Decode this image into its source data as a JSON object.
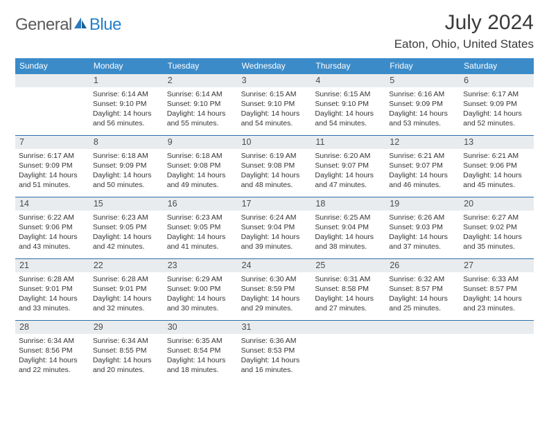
{
  "brand": {
    "part1": "General",
    "part2": "Blue"
  },
  "title": "July 2024",
  "location": "Eaton, Ohio, United States",
  "colors": {
    "header_bg": "#3b8bc9",
    "daynum_bg": "#e9ecee",
    "week_border": "#2d6ea8",
    "brand_blue": "#247fcb"
  },
  "week_labels": [
    "Sunday",
    "Monday",
    "Tuesday",
    "Wednesday",
    "Thursday",
    "Friday",
    "Saturday"
  ],
  "weeks": [
    [
      {
        "num": "",
        "sunrise": "",
        "sunset": "",
        "daylight": ""
      },
      {
        "num": "1",
        "sunrise": "Sunrise: 6:14 AM",
        "sunset": "Sunset: 9:10 PM",
        "daylight": "Daylight: 14 hours\nand 56 minutes."
      },
      {
        "num": "2",
        "sunrise": "Sunrise: 6:14 AM",
        "sunset": "Sunset: 9:10 PM",
        "daylight": "Daylight: 14 hours\nand 55 minutes."
      },
      {
        "num": "3",
        "sunrise": "Sunrise: 6:15 AM",
        "sunset": "Sunset: 9:10 PM",
        "daylight": "Daylight: 14 hours\nand 54 minutes."
      },
      {
        "num": "4",
        "sunrise": "Sunrise: 6:15 AM",
        "sunset": "Sunset: 9:10 PM",
        "daylight": "Daylight: 14 hours\nand 54 minutes."
      },
      {
        "num": "5",
        "sunrise": "Sunrise: 6:16 AM",
        "sunset": "Sunset: 9:09 PM",
        "daylight": "Daylight: 14 hours\nand 53 minutes."
      },
      {
        "num": "6",
        "sunrise": "Sunrise: 6:17 AM",
        "sunset": "Sunset: 9:09 PM",
        "daylight": "Daylight: 14 hours\nand 52 minutes."
      }
    ],
    [
      {
        "num": "7",
        "sunrise": "Sunrise: 6:17 AM",
        "sunset": "Sunset: 9:09 PM",
        "daylight": "Daylight: 14 hours\nand 51 minutes."
      },
      {
        "num": "8",
        "sunrise": "Sunrise: 6:18 AM",
        "sunset": "Sunset: 9:09 PM",
        "daylight": "Daylight: 14 hours\nand 50 minutes."
      },
      {
        "num": "9",
        "sunrise": "Sunrise: 6:18 AM",
        "sunset": "Sunset: 9:08 PM",
        "daylight": "Daylight: 14 hours\nand 49 minutes."
      },
      {
        "num": "10",
        "sunrise": "Sunrise: 6:19 AM",
        "sunset": "Sunset: 9:08 PM",
        "daylight": "Daylight: 14 hours\nand 48 minutes."
      },
      {
        "num": "11",
        "sunrise": "Sunrise: 6:20 AM",
        "sunset": "Sunset: 9:07 PM",
        "daylight": "Daylight: 14 hours\nand 47 minutes."
      },
      {
        "num": "12",
        "sunrise": "Sunrise: 6:21 AM",
        "sunset": "Sunset: 9:07 PM",
        "daylight": "Daylight: 14 hours\nand 46 minutes."
      },
      {
        "num": "13",
        "sunrise": "Sunrise: 6:21 AM",
        "sunset": "Sunset: 9:06 PM",
        "daylight": "Daylight: 14 hours\nand 45 minutes."
      }
    ],
    [
      {
        "num": "14",
        "sunrise": "Sunrise: 6:22 AM",
        "sunset": "Sunset: 9:06 PM",
        "daylight": "Daylight: 14 hours\nand 43 minutes."
      },
      {
        "num": "15",
        "sunrise": "Sunrise: 6:23 AM",
        "sunset": "Sunset: 9:05 PM",
        "daylight": "Daylight: 14 hours\nand 42 minutes."
      },
      {
        "num": "16",
        "sunrise": "Sunrise: 6:23 AM",
        "sunset": "Sunset: 9:05 PM",
        "daylight": "Daylight: 14 hours\nand 41 minutes."
      },
      {
        "num": "17",
        "sunrise": "Sunrise: 6:24 AM",
        "sunset": "Sunset: 9:04 PM",
        "daylight": "Daylight: 14 hours\nand 39 minutes."
      },
      {
        "num": "18",
        "sunrise": "Sunrise: 6:25 AM",
        "sunset": "Sunset: 9:04 PM",
        "daylight": "Daylight: 14 hours\nand 38 minutes."
      },
      {
        "num": "19",
        "sunrise": "Sunrise: 6:26 AM",
        "sunset": "Sunset: 9:03 PM",
        "daylight": "Daylight: 14 hours\nand 37 minutes."
      },
      {
        "num": "20",
        "sunrise": "Sunrise: 6:27 AM",
        "sunset": "Sunset: 9:02 PM",
        "daylight": "Daylight: 14 hours\nand 35 minutes."
      }
    ],
    [
      {
        "num": "21",
        "sunrise": "Sunrise: 6:28 AM",
        "sunset": "Sunset: 9:01 PM",
        "daylight": "Daylight: 14 hours\nand 33 minutes."
      },
      {
        "num": "22",
        "sunrise": "Sunrise: 6:28 AM",
        "sunset": "Sunset: 9:01 PM",
        "daylight": "Daylight: 14 hours\nand 32 minutes."
      },
      {
        "num": "23",
        "sunrise": "Sunrise: 6:29 AM",
        "sunset": "Sunset: 9:00 PM",
        "daylight": "Daylight: 14 hours\nand 30 minutes."
      },
      {
        "num": "24",
        "sunrise": "Sunrise: 6:30 AM",
        "sunset": "Sunset: 8:59 PM",
        "daylight": "Daylight: 14 hours\nand 29 minutes."
      },
      {
        "num": "25",
        "sunrise": "Sunrise: 6:31 AM",
        "sunset": "Sunset: 8:58 PM",
        "daylight": "Daylight: 14 hours\nand 27 minutes."
      },
      {
        "num": "26",
        "sunrise": "Sunrise: 6:32 AM",
        "sunset": "Sunset: 8:57 PM",
        "daylight": "Daylight: 14 hours\nand 25 minutes."
      },
      {
        "num": "27",
        "sunrise": "Sunrise: 6:33 AM",
        "sunset": "Sunset: 8:57 PM",
        "daylight": "Daylight: 14 hours\nand 23 minutes."
      }
    ],
    [
      {
        "num": "28",
        "sunrise": "Sunrise: 6:34 AM",
        "sunset": "Sunset: 8:56 PM",
        "daylight": "Daylight: 14 hours\nand 22 minutes."
      },
      {
        "num": "29",
        "sunrise": "Sunrise: 6:34 AM",
        "sunset": "Sunset: 8:55 PM",
        "daylight": "Daylight: 14 hours\nand 20 minutes."
      },
      {
        "num": "30",
        "sunrise": "Sunrise: 6:35 AM",
        "sunset": "Sunset: 8:54 PM",
        "daylight": "Daylight: 14 hours\nand 18 minutes."
      },
      {
        "num": "31",
        "sunrise": "Sunrise: 6:36 AM",
        "sunset": "Sunset: 8:53 PM",
        "daylight": "Daylight: 14 hours\nand 16 minutes."
      },
      {
        "num": "",
        "sunrise": "",
        "sunset": "",
        "daylight": ""
      },
      {
        "num": "",
        "sunrise": "",
        "sunset": "",
        "daylight": ""
      },
      {
        "num": "",
        "sunrise": "",
        "sunset": "",
        "daylight": ""
      }
    ]
  ]
}
